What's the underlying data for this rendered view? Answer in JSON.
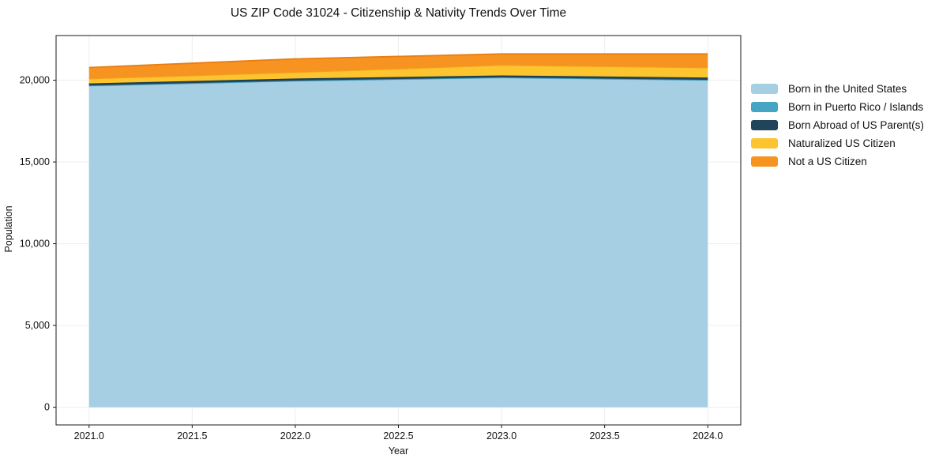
{
  "title": "US ZIP Code 31024 - Citizenship & Nativity Trends Over Time",
  "chart_data": {
    "type": "area",
    "stacked": true,
    "title": "US ZIP Code 31024 - Citizenship & Nativity Trends Over Time",
    "xlabel": "Year",
    "ylabel": "Population",
    "x": [
      2021,
      2022,
      2023,
      2024
    ],
    "series": [
      {
        "name": "Born in the United States",
        "color": "#a6cfe4",
        "edge": "#8fc0da",
        "values": [
          19650,
          19950,
          20150,
          20000
        ]
      },
      {
        "name": "Born in Puerto Rico / Islands",
        "color": "#45a5c5",
        "edge": "#3a93b2",
        "values": [
          25,
          25,
          25,
          25
        ]
      },
      {
        "name": "Born Abroad of US Parent(s)",
        "color": "#20455b",
        "edge": "#1a3a4d",
        "values": [
          130,
          130,
          120,
          140
        ]
      },
      {
        "name": "Naturalized US Citizen",
        "color": "#fcc42e",
        "edge": "#efa31f",
        "values": [
          290,
          380,
          630,
          610
        ]
      },
      {
        "name": "Not a US Citizen",
        "color": "#f79421",
        "edge": "#ea7d12",
        "values": [
          680,
          820,
          680,
          830
        ]
      }
    ],
    "totals": [
      20775,
      21305,
      21605,
      21605
    ],
    "xlim": [
      2020.84,
      2024.16
    ],
    "ylim": [
      -1082,
      22732
    ],
    "xticks": {
      "values": [
        2021.0,
        2021.5,
        2022.0,
        2022.5,
        2023.0,
        2023.5,
        2024.0
      ],
      "labels": [
        "2021.0",
        "2021.5",
        "2022.0",
        "2022.5",
        "2023.0",
        "2023.5",
        "2024.0"
      ]
    },
    "yticks": {
      "values": [
        0,
        5000,
        10000,
        15000,
        20000
      ],
      "labels": [
        "0",
        "5,000",
        "10,000",
        "15,000",
        "20,000"
      ]
    },
    "grid": true,
    "legend_position": "right-outside"
  },
  "colors": {
    "background": "#ffffff",
    "grid": "#ededed",
    "frame": "#1a1a1a",
    "tick": "#1a1a1a",
    "text": "#111111"
  }
}
